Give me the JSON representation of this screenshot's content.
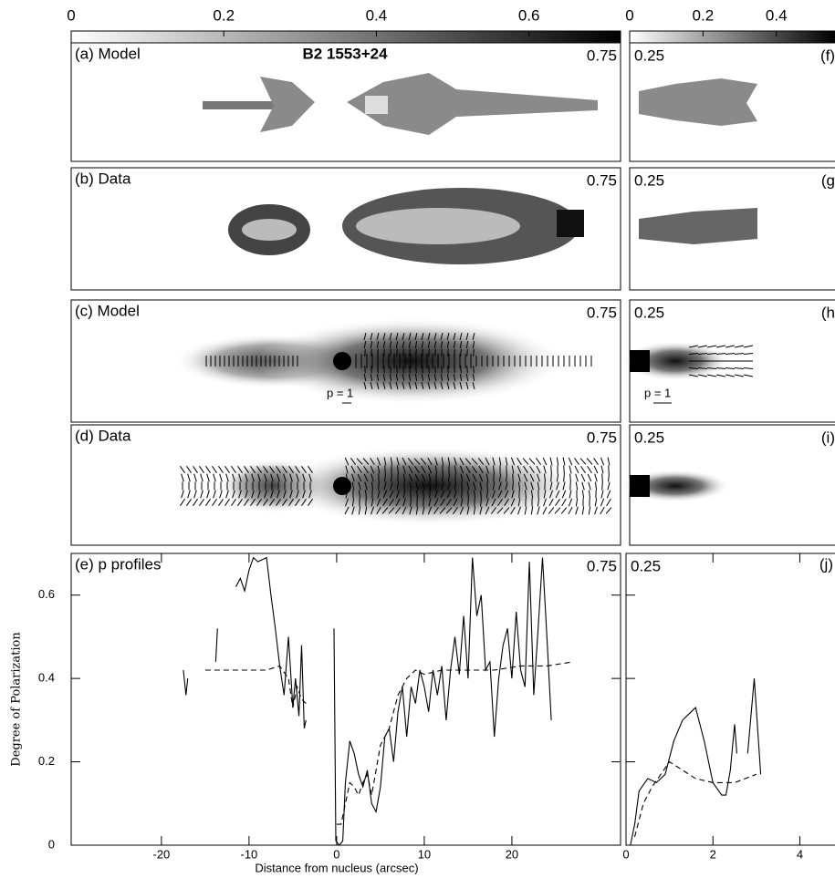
{
  "colorbars": [
    {
      "lim": [
        0,
        0.72
      ],
      "ticks": [
        0,
        0.2,
        0.4,
        0.6
      ]
    },
    {
      "lim": [
        0,
        0.56
      ],
      "ticks": [
        0,
        0.2,
        0.4
      ]
    }
  ],
  "panels": [
    {
      "label": "(a) Model",
      "title": "B2 1553+24",
      "resolution": "0.75"
    },
    {
      "label": "(b) Data",
      "resolution": "0.75"
    },
    {
      "label": "(c) Model",
      "resolution": "0.75"
    },
    {
      "label": "(d) Data",
      "resolution": "0.75"
    }
  ],
  "right_panels": [
    {
      "resolution": "0.25",
      "label": "(f)"
    },
    {
      "resolution": "0.25",
      "label": "(g"
    },
    {
      "resolution": "0.25",
      "label": "(h"
    },
    {
      "resolution": "0.25",
      "label": "(i)"
    }
  ],
  "vector_scale_labels": [
    "p = 1",
    "p = 1"
  ],
  "chart_data": [
    {
      "type": "line",
      "panel_label": "(e) p profiles",
      "resolution": "0.75",
      "xlabel": "Distance from nucleus (arcsec)",
      "ylabel": "Degree of Polarization",
      "xlim": [
        -30.3,
        32.4
      ],
      "ylim": [
        0,
        0.7
      ],
      "xticks": [
        -20,
        -10,
        0,
        10,
        20
      ],
      "yticks": [
        0,
        0.2,
        0.4,
        0.6
      ],
      "series": [
        {
          "color": "#000000",
          "style": "solid",
          "x": [
            -17.5,
            -17.2,
            -17,
            null,
            -13.8,
            -13.6,
            null,
            -11.5,
            -11,
            -10.5,
            -10,
            -9.5,
            -9,
            -8,
            -7.5,
            -7,
            -6.5,
            -6,
            -5.5,
            -5,
            -4.7,
            -4.3,
            -4,
            -3.7,
            -3.5,
            null,
            -0.3,
            -0.1,
            0.3,
            0.7,
            1,
            1.5,
            2,
            2.5,
            3,
            3.5,
            4,
            4.5,
            5,
            5.5,
            6,
            6.5,
            7,
            7.5,
            8,
            8.5,
            9,
            9.5,
            10,
            10.5,
            11,
            11.5,
            12,
            12.5,
            13,
            13.5,
            14,
            14.5,
            15,
            15.5,
            16,
            16.5,
            17,
            17.5,
            18,
            18.5,
            19,
            19.5,
            20,
            20.5,
            21,
            21.5,
            22,
            22.5,
            23,
            23.5,
            24,
            24.5
          ],
          "values": [
            0.42,
            0.36,
            0.4,
            null,
            0.44,
            0.52,
            null,
            0.62,
            0.64,
            0.61,
            0.66,
            0.69,
            0.68,
            0.69,
            0.6,
            0.52,
            0.43,
            0.36,
            0.5,
            0.33,
            0.4,
            0.31,
            0.48,
            0.28,
            0.3,
            null,
            0.52,
            0.01,
            0,
            0.01,
            0.15,
            0.25,
            0.22,
            0.17,
            0.14,
            0.18,
            0.1,
            0.08,
            0.14,
            0.26,
            0.28,
            0.2,
            0.32,
            0.38,
            0.26,
            0.38,
            0.34,
            0.42,
            0.38,
            0.32,
            0.42,
            0.36,
            0.43,
            0.3,
            0.42,
            0.5,
            0.41,
            0.55,
            0.4,
            0.69,
            0.55,
            0.6,
            0.42,
            0.44,
            0.26,
            0.4,
            0.48,
            0.52,
            0.4,
            0.56,
            0.42,
            0.38,
            0.68,
            0.36,
            0.52,
            0.69,
            0.5,
            0.3
          ]
        },
        {
          "color": "#000000",
          "style": "dashed",
          "x": [
            -15,
            -12,
            -10,
            -8,
            -6.5,
            -5.5,
            -5,
            -4.5,
            -4,
            -3.5,
            null,
            0,
            0.5,
            1,
            1.5,
            2,
            2.5,
            3,
            3.5,
            4,
            5,
            6,
            7,
            8,
            9,
            10,
            12,
            15,
            18,
            21,
            24,
            27
          ],
          "values": [
            0.42,
            0.42,
            0.42,
            0.42,
            0.43,
            0.4,
            0.33,
            0.38,
            0.35,
            0.34,
            null,
            0.05,
            0.05,
            0.1,
            0.15,
            0.14,
            0.12,
            0.15,
            0.17,
            0.12,
            0.24,
            0.28,
            0.36,
            0.4,
            0.42,
            0.41,
            0.42,
            0.42,
            0.42,
            0.43,
            0.43,
            0.44
          ]
        }
      ]
    },
    {
      "type": "line",
      "panel_label": "(j)",
      "resolution": "0.25",
      "xlim": [
        0,
        4.82
      ],
      "ylim": [
        0,
        0.7
      ],
      "xticks": [
        0,
        2,
        4
      ],
      "yticks": [
        0,
        0.2,
        0.4,
        0.6
      ],
      "series": [
        {
          "color": "#000000",
          "style": "solid",
          "x": [
            0.1,
            0.2,
            0.3,
            0.5,
            0.7,
            0.9,
            1.1,
            1.3,
            1.5,
            1.6,
            1.8,
            2,
            2.2,
            2.3,
            2.4,
            2.5,
            2.55,
            null,
            2.8,
            2.95,
            3.1
          ],
          "values": [
            0,
            0.05,
            0.13,
            0.16,
            0.15,
            0.17,
            0.25,
            0.3,
            0.32,
            0.33,
            0.25,
            0.15,
            0.12,
            0.12,
            0.18,
            0.29,
            0.22,
            null,
            0.22,
            0.4,
            0.17
          ]
        },
        {
          "color": "#000000",
          "style": "dashed",
          "x": [
            0.2,
            0.4,
            0.6,
            0.8,
            1,
            1.3,
            1.6,
            2,
            2.5,
            3
          ],
          "values": [
            0.02,
            0.1,
            0.14,
            0.17,
            0.2,
            0.18,
            0.16,
            0.15,
            0.15,
            0.17
          ]
        }
      ]
    }
  ]
}
